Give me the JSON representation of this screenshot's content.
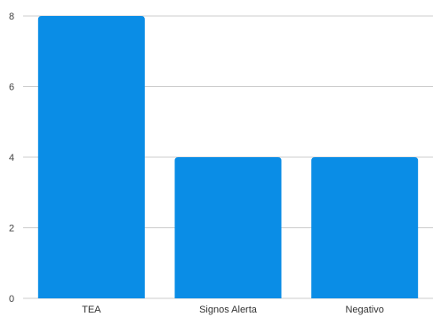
{
  "chart_data": {
    "type": "bar",
    "categories": [
      "TEA",
      "Signos Alerta",
      "Negativo"
    ],
    "values": [
      8,
      4,
      4
    ],
    "yticks": [
      0,
      2,
      4,
      6,
      8
    ],
    "ylim": [
      0,
      8
    ],
    "grid": true,
    "bar_color": "#0a8de6",
    "grid_color": "#cccccc"
  }
}
